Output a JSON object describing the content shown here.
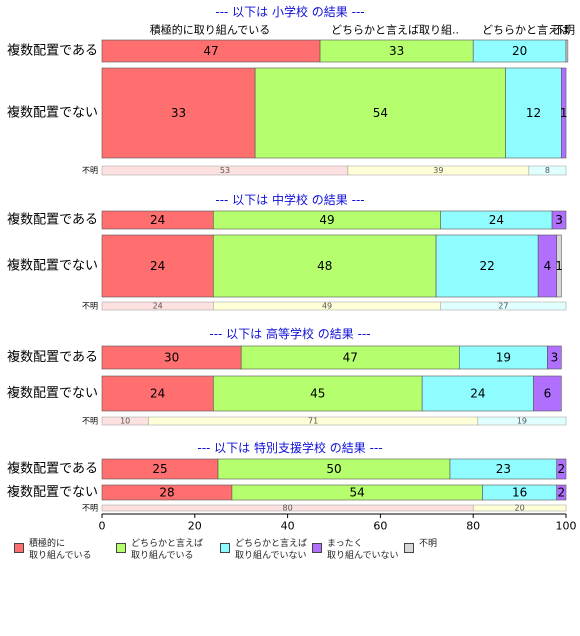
{
  "chart_data": {
    "type": "bar",
    "orientation": "horizontal-stacked-percent",
    "xlim": [
      0,
      100
    ],
    "xticks": [
      0,
      20,
      40,
      60,
      80,
      100
    ],
    "grid": false,
    "legend_position": "bottom",
    "colors": [
      "#ff6f6f",
      "#b5ff6f",
      "#8ffdff",
      "#b06ffd",
      "#d8d8d8"
    ],
    "legend": [
      "積極的に\n取り組んでいる",
      "どちらかと言えば\n取り組んでいる",
      "どちらかと言えば\n取り組んでいない",
      "まったく\n取り組んでいない",
      "不明"
    ],
    "top_headers": [
      "積極的に取り組んでいる",
      "どちらかと言えば取り組..",
      "どちらかと言えば",
      "不明"
    ],
    "panels": [
      {
        "title": "--- 以下は 小学校 の結果 ---",
        "rows": [
          {
            "label": "複数配置である",
            "values": [
              47,
              33,
              20,
              0,
              0.4
            ]
          },
          {
            "label": "複数配置でない",
            "values": [
              33,
              54,
              12,
              1,
              0
            ]
          }
        ],
        "unknown": {
          "label": "不明",
          "values": [
            53,
            39,
            8
          ]
        }
      },
      {
        "title": "--- 以下は 中学校 の結果 ---",
        "rows": [
          {
            "label": "複数配置である",
            "values": [
              24,
              49,
              24,
              3,
              0
            ]
          },
          {
            "label": "複数配置でない",
            "values": [
              24,
              48,
              22,
              4,
              1
            ]
          }
        ],
        "unknown": {
          "label": "不明",
          "values": [
            24,
            49,
            27
          ]
        }
      },
      {
        "title": "--- 以下は 高等学校 の結果 ---",
        "rows": [
          {
            "label": "複数配置である",
            "values": [
              30,
              47,
              19,
              3,
              0
            ]
          },
          {
            "label": "複数配置でない",
            "values": [
              24,
              45,
              24,
              6,
              0
            ]
          }
        ],
        "unknown": {
          "label": "不明",
          "values": [
            10,
            71,
            19
          ]
        }
      },
      {
        "title": "--- 以下は 特別支援学校 の結果 ---",
        "rows": [
          {
            "label": "複数配置である",
            "values": [
              25,
              50,
              23,
              2,
              0
            ]
          },
          {
            "label": "複数配置でない",
            "values": [
              28,
              54,
              16,
              2,
              0
            ]
          }
        ],
        "unknown": {
          "label": "不明",
          "values": [
            80,
            20
          ]
        }
      }
    ]
  }
}
